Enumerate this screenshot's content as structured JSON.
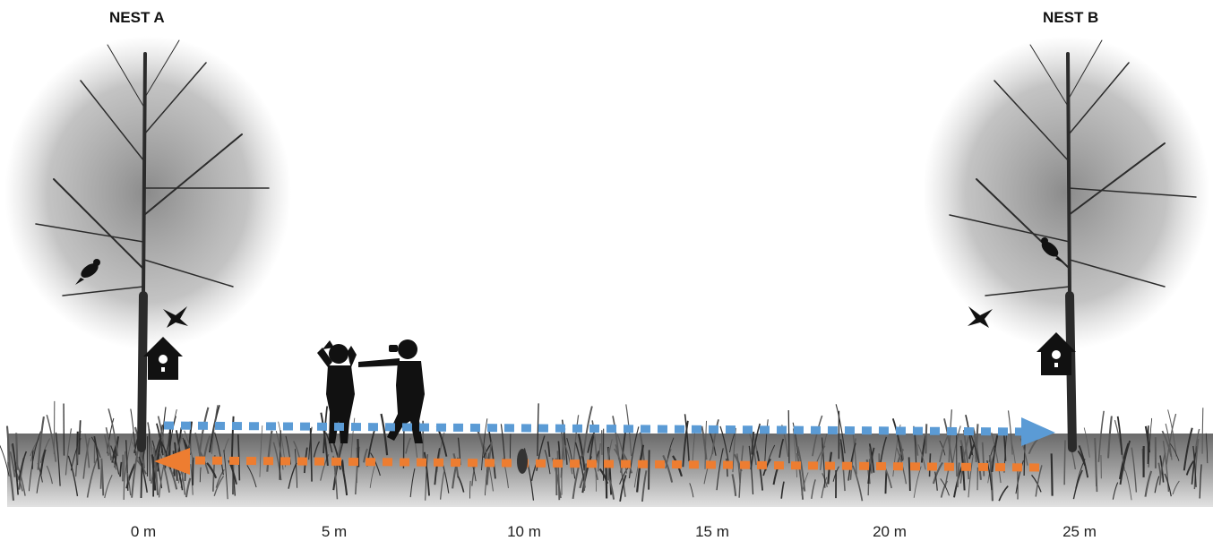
{
  "nests": [
    {
      "label": "NEST A"
    },
    {
      "label": "NEST B"
    }
  ],
  "distance_axis": {
    "ticks": [
      "0 m",
      "5 m",
      "10 m",
      "15 m",
      "20 m",
      "25 m"
    ],
    "values": [
      0,
      5,
      10,
      15,
      20,
      25
    ]
  },
  "colors": {
    "arrow_a_to_b": "#5b9bd5",
    "arrow_b_to_a": "#ed7d31",
    "silhouette": "#111111"
  },
  "icons": [
    "tree-icon",
    "birdhouse-icon",
    "perched-bird-icon",
    "flying-bird-icon",
    "observer-silhouette-icon",
    "grass-icon"
  ]
}
